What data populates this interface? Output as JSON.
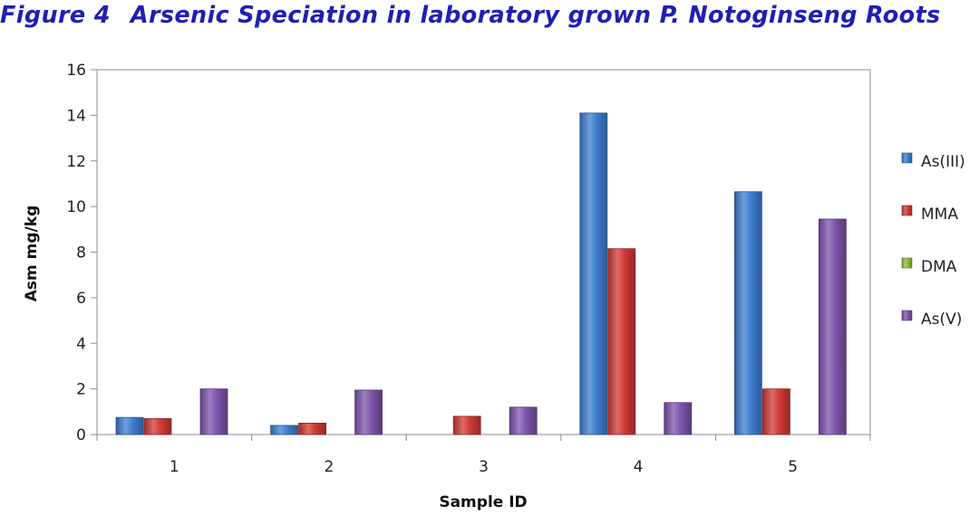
{
  "figure": {
    "label": "Figure 4",
    "title": "Arsenic Speciation in laboratory grown P. Notoginseng Roots"
  },
  "chart_data": {
    "type": "bar",
    "categories": [
      "1",
      "2",
      "3",
      "4",
      "5"
    ],
    "series": [
      {
        "name": "As(III)",
        "color": "#3f7fd0",
        "values": [
          0.75,
          0.4,
          0,
          14.1,
          10.65
        ]
      },
      {
        "name": "MMA",
        "color": "#d23a36",
        "values": [
          0.7,
          0.5,
          0.8,
          8.15,
          2.0
        ]
      },
      {
        "name": "DMA",
        "color": "#8fbc3a",
        "values": [
          0,
          0,
          0,
          0,
          0
        ]
      },
      {
        "name": "As(V)",
        "color": "#7f55ae",
        "values": [
          2.0,
          1.95,
          1.2,
          1.4,
          9.45
        ]
      }
    ],
    "xlabel": "Sample ID",
    "ylabel": "Asm mg/kg",
    "ylim": [
      0,
      16
    ],
    "yticks": [
      0,
      2,
      4,
      6,
      8,
      10,
      12,
      14,
      16
    ],
    "grid": false,
    "legend_position": "right"
  }
}
